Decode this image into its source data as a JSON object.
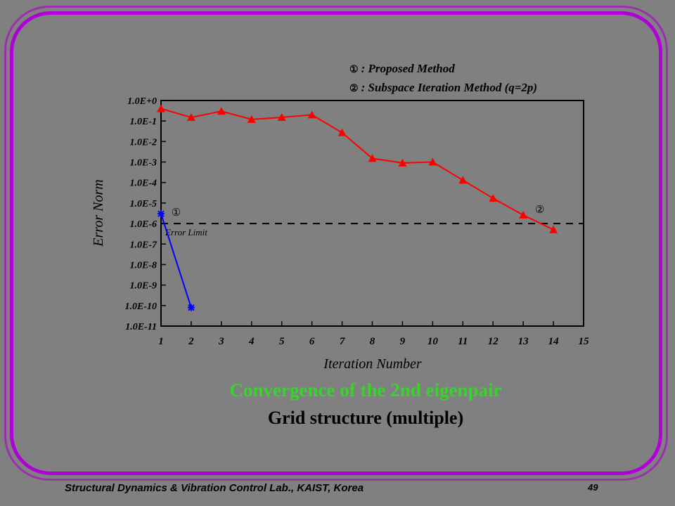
{
  "legend": {
    "entries": [
      {
        "marker": "①",
        "text": ": Proposed Method"
      },
      {
        "marker": "②",
        "text": ": Subspace Iteration Method (q=2p)"
      }
    ]
  },
  "caption": {
    "title": "Convergence of the 2nd eigenpair",
    "subtitle": "Grid structure (multiple)"
  },
  "footer": {
    "lab": "Structural Dynamics & Vibration Control Lab., KAIST, Korea",
    "page": "49"
  },
  "colors": {
    "background": "#808080",
    "frame": "#b000d8",
    "series_proposed": "#0000ff",
    "series_subspace": "#ff0000",
    "title_green": "#39d32e"
  },
  "chart_data": {
    "type": "line",
    "xlabel": "Iteration Number",
    "ylabel": "Error Norm",
    "xlim": [
      1,
      15
    ],
    "ylim_log10": [
      -11,
      0
    ],
    "y_scale": "log",
    "x_ticks": [
      "1",
      "2",
      "3",
      "4",
      "5",
      "6",
      "7",
      "8",
      "9",
      "10",
      "11",
      "12",
      "13",
      "14",
      "15"
    ],
    "y_ticks": [
      {
        "exp": 0,
        "label": "1.0E+0"
      },
      {
        "exp": -1,
        "label": "1.0E-1"
      },
      {
        "exp": -2,
        "label": "1.0E-2"
      },
      {
        "exp": -3,
        "label": "1.0E-3"
      },
      {
        "exp": -4,
        "label": "1.0E-4"
      },
      {
        "exp": -5,
        "label": "1.0E-5"
      },
      {
        "exp": -6,
        "label": "1.0E-6"
      },
      {
        "exp": -7,
        "label": "1.0E-7"
      },
      {
        "exp": -8,
        "label": "1.0E-8"
      },
      {
        "exp": -9,
        "label": "1.0E-9"
      },
      {
        "exp": -10,
        "label": "1.0E-10"
      },
      {
        "exp": -11,
        "label": "1.0E-11"
      }
    ],
    "reference_line": {
      "label": "Error Limit",
      "y": 1e-06
    },
    "series": [
      {
        "key": "proposed",
        "marker_label": "①",
        "x": [
          1,
          2
        ],
        "y": [
          3e-06,
          8e-11
        ]
      },
      {
        "key": "subspace",
        "marker_label": "②",
        "x": [
          1,
          2,
          3,
          4,
          5,
          6,
          7,
          8,
          9,
          10,
          11,
          12,
          13,
          14
        ],
        "y": [
          0.4,
          0.15,
          0.3,
          0.12,
          0.15,
          0.2,
          0.027,
          0.0015,
          0.0009,
          0.001,
          0.00013,
          1.7e-05,
          2.6e-06,
          5e-07
        ]
      }
    ]
  }
}
